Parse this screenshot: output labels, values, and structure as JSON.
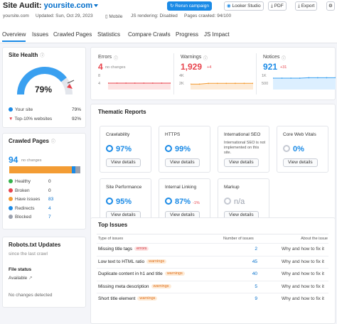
{
  "header": {
    "title": "Site Audit:",
    "domain": "yoursite.com",
    "site": "yoursite.com",
    "updated": "Updated: Sun, Oct 29, 2023",
    "device": "Mobile",
    "js_rendering": "JS rendering: Disabled",
    "pages_crawled": "Pages crawled: 94/100",
    "buttons": {
      "rerun": "Rerun campaign",
      "looker": "Looker Studio",
      "pdf": "PDF",
      "export": "Export"
    }
  },
  "tabs": [
    "Overview",
    "Issues",
    "Crawled Pages",
    "Statistics",
    "Compare Crawls",
    "Progress",
    "JS Impact"
  ],
  "site_health": {
    "title": "Site Health",
    "value": "79%",
    "rows": [
      {
        "label": "Your site",
        "value": "79%"
      },
      {
        "label": "Top-10% websites",
        "value": "92%"
      }
    ]
  },
  "crawled_pages": {
    "title": "Crawled Pages",
    "count": "94",
    "note": "no changes",
    "rows": [
      {
        "label": "Healthy",
        "value": "0",
        "color": "#34b24a"
      },
      {
        "label": "Broken",
        "value": "0",
        "color": "#e8434c"
      },
      {
        "label": "Have issues",
        "value": "83",
        "color": "#f39c34"
      },
      {
        "label": "Redirects",
        "value": "4",
        "color": "#1a8ae6"
      },
      {
        "label": "Blocked",
        "value": "7",
        "color": "#9aa0ad"
      }
    ]
  },
  "robots": {
    "title": "Robots.txt Updates",
    "subtitle": "since the last crawl",
    "file_status_label": "File status",
    "file_status": "Available",
    "note": "No changes detected"
  },
  "summary": {
    "errors": {
      "label": "Errors",
      "value": "4",
      "change": "no changes",
      "ticks": [
        "8",
        "4"
      ],
      "points": [
        4,
        4,
        4,
        4,
        4,
        4,
        4,
        4
      ]
    },
    "warnings": {
      "label": "Warnings",
      "value": "1,929",
      "change": "+4",
      "ticks": [
        "4K",
        "2K"
      ],
      "points": [
        1700,
        1700,
        1925,
        1925,
        1925,
        1929,
        1929,
        1929
      ]
    },
    "notices": {
      "label": "Notices",
      "value": "921",
      "change": "+31",
      "ticks": [
        "1K",
        "500"
      ],
      "points": [
        890,
        890,
        890,
        890,
        921,
        921,
        921,
        921
      ]
    }
  },
  "thematic": {
    "title": "Thematic Reports",
    "view_details": "View details",
    "tiles": [
      {
        "name": "Crawlability",
        "value": "97%"
      },
      {
        "name": "HTTPS",
        "value": "99%"
      },
      {
        "name": "International SEO",
        "note": "International SEO is not implemented on this site."
      },
      {
        "name": "Core Web Vitals",
        "value": "0%"
      },
      {
        "name": "Site Performance",
        "value": "95%"
      },
      {
        "name": "Internal Linking",
        "value": "87%",
        "change": "-1%"
      },
      {
        "name": "Markup",
        "value": "n/a"
      }
    ]
  },
  "top_issues": {
    "title": "Top Issues",
    "col_type": "Type of issues",
    "col_count": "Number of issues",
    "col_about": "About the issue",
    "link": "Why and how to fix it",
    "rows": [
      {
        "name": "Missing title tags",
        "badge": "errors",
        "count": "2"
      },
      {
        "name": "Low text to HTML ratio",
        "badge": "warnings",
        "count": "45"
      },
      {
        "name": "Duplicate content in h1 and title",
        "badge": "warnings",
        "count": "40"
      },
      {
        "name": "Missing meta description",
        "badge": "warnings",
        "count": "5"
      },
      {
        "name": "Short title element",
        "badge": "warnings",
        "count": "9"
      }
    ]
  }
}
